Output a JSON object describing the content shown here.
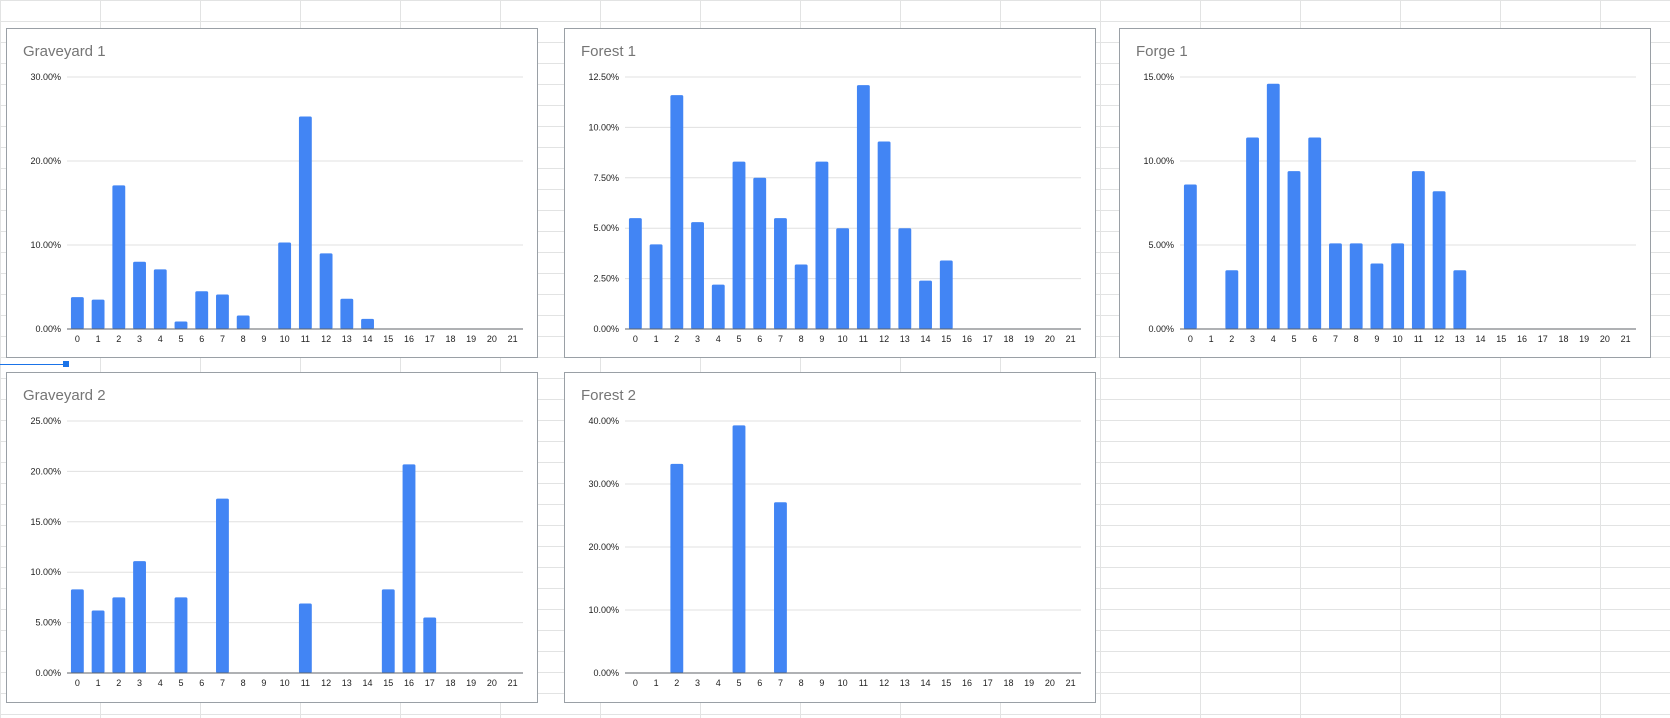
{
  "sheet": {
    "bar_color": "#4285f4",
    "grid_color": "#e0e0e0",
    "axis_color": "#5f6368"
  },
  "chart_data": [
    {
      "type": "bar",
      "title": "Graveyard 1",
      "categories": [
        "0",
        "1",
        "2",
        "3",
        "4",
        "5",
        "6",
        "7",
        "8",
        "9",
        "10",
        "11",
        "12",
        "13",
        "14",
        "15",
        "16",
        "17",
        "18",
        "19",
        "20",
        "21"
      ],
      "values": [
        3.8,
        3.5,
        17.1,
        8.0,
        7.1,
        0.9,
        4.5,
        4.1,
        1.6,
        0,
        10.3,
        25.3,
        9.0,
        3.6,
        1.2,
        0,
        0,
        0,
        0,
        0,
        0,
        0
      ],
      "ylim": [
        0,
        30
      ],
      "yticks": [
        0,
        10,
        20,
        30
      ],
      "ytick_labels": [
        "0.00%",
        "10.00%",
        "20.00%",
        "30.00%"
      ],
      "grid": true,
      "legend": "none"
    },
    {
      "type": "bar",
      "title": "Forest 1",
      "categories": [
        "0",
        "1",
        "2",
        "3",
        "4",
        "5",
        "6",
        "7",
        "8",
        "9",
        "10",
        "11",
        "12",
        "13",
        "14",
        "15",
        "16",
        "17",
        "18",
        "19",
        "20",
        "21"
      ],
      "values": [
        5.5,
        4.2,
        11.6,
        5.3,
        2.2,
        8.3,
        7.5,
        5.5,
        3.2,
        8.3,
        5.0,
        12.1,
        9.3,
        5.0,
        2.4,
        3.4,
        0,
        0,
        0,
        0,
        0,
        0
      ],
      "ylim": [
        0,
        12.5
      ],
      "yticks": [
        0,
        2.5,
        5,
        7.5,
        10,
        12.5
      ],
      "ytick_labels": [
        "0.00%",
        "2.50%",
        "5.00%",
        "7.50%",
        "10.00%",
        "12.50%"
      ],
      "grid": true,
      "legend": "none"
    },
    {
      "type": "bar",
      "title": "Forge 1",
      "categories": [
        "0",
        "1",
        "2",
        "3",
        "4",
        "5",
        "6",
        "7",
        "8",
        "9",
        "10",
        "11",
        "12",
        "13",
        "14",
        "15",
        "16",
        "17",
        "18",
        "19",
        "20",
        "21"
      ],
      "values": [
        8.6,
        0,
        3.5,
        11.4,
        14.6,
        9.4,
        11.4,
        5.1,
        5.1,
        3.9,
        5.1,
        9.4,
        8.2,
        3.5,
        0,
        0,
        0,
        0,
        0,
        0,
        0,
        0
      ],
      "ylim": [
        0,
        15
      ],
      "yticks": [
        0,
        5,
        10,
        15
      ],
      "ytick_labels": [
        "0.00%",
        "5.00%",
        "10.00%",
        "15.00%"
      ],
      "grid": true,
      "legend": "none"
    },
    {
      "type": "bar",
      "title": "Graveyard 2",
      "categories": [
        "0",
        "1",
        "2",
        "3",
        "4",
        "5",
        "6",
        "7",
        "8",
        "9",
        "10",
        "11",
        "12",
        "13",
        "14",
        "15",
        "16",
        "17",
        "18",
        "19",
        "20",
        "21"
      ],
      "values": [
        8.3,
        6.2,
        7.5,
        11.1,
        0,
        7.5,
        0,
        17.3,
        0,
        0,
        0,
        6.9,
        0,
        0,
        0,
        8.3,
        20.7,
        5.5,
        0,
        0,
        0,
        0
      ],
      "ylim": [
        0,
        25
      ],
      "yticks": [
        0,
        5,
        10,
        15,
        20,
        25
      ],
      "ytick_labels": [
        "0.00%",
        "5.00%",
        "10.00%",
        "15.00%",
        "20.00%",
        "25.00%"
      ],
      "grid": true,
      "legend": "none"
    },
    {
      "type": "bar",
      "title": "Forest 2",
      "categories": [
        "0",
        "1",
        "2",
        "3",
        "4",
        "5",
        "6",
        "7",
        "8",
        "9",
        "10",
        "11",
        "12",
        "13",
        "14",
        "15",
        "16",
        "17",
        "18",
        "19",
        "20",
        "21"
      ],
      "values": [
        0,
        0,
        33.2,
        0,
        0,
        39.3,
        0,
        27.1,
        0,
        0,
        0,
        0,
        0,
        0,
        0,
        0,
        0,
        0,
        0,
        0,
        0,
        0
      ],
      "ylim": [
        0,
        40
      ],
      "yticks": [
        0,
        10,
        20,
        30,
        40
      ],
      "ytick_labels": [
        "0.00%",
        "10.00%",
        "20.00%",
        "30.00%",
        "40.00%"
      ],
      "grid": true,
      "legend": "none"
    }
  ]
}
